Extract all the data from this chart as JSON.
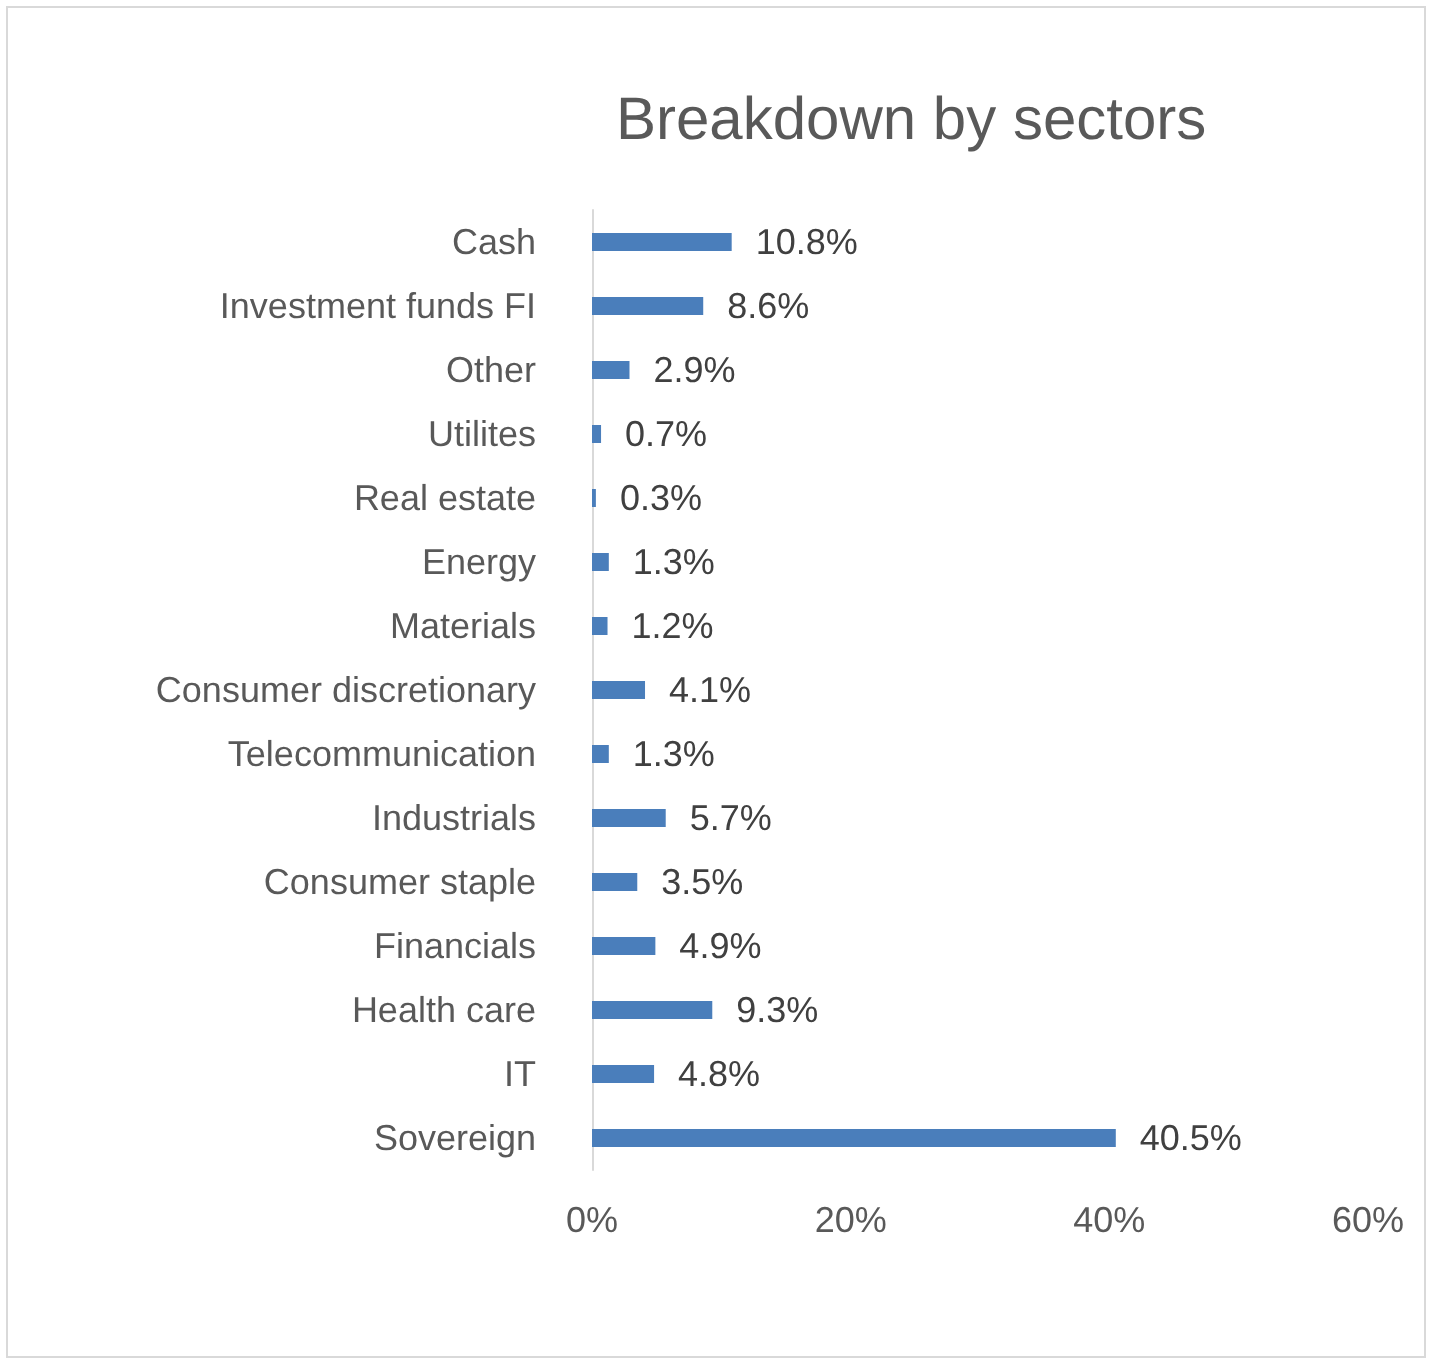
{
  "chart_data": {
    "type": "bar",
    "orientation": "horizontal",
    "title": "Breakdown by sectors",
    "categories": [
      "Cash",
      "Investment funds FI",
      "Other",
      "Utilites",
      "Real estate",
      "Energy",
      "Materials",
      "Consumer discretionary",
      "Telecommunication",
      "Industrials",
      "Consumer staple",
      "Financials",
      "Health care",
      "IT",
      "Sovereign"
    ],
    "values": [
      10.8,
      8.6,
      2.9,
      0.7,
      0.3,
      1.3,
      1.2,
      4.1,
      1.3,
      5.7,
      3.5,
      4.9,
      9.3,
      4.8,
      40.5
    ],
    "value_labels": [
      "10.8%",
      "8.6%",
      "2.9%",
      "0.7%",
      "0.3%",
      "1.3%",
      "1.2%",
      "4.1%",
      "1.3%",
      "5.7%",
      "3.5%",
      "4.9%",
      "9.3%",
      "4.8%",
      "40.5%"
    ],
    "color": "#4a7ebb",
    "xlim": [
      0,
      60
    ],
    "xticks": [
      {
        "value": 0,
        "label": "0%"
      },
      {
        "value": 20,
        "label": "20%"
      },
      {
        "value": 40,
        "label": "40%"
      },
      {
        "value": 60,
        "label": "60%"
      }
    ],
    "grid": false
  }
}
